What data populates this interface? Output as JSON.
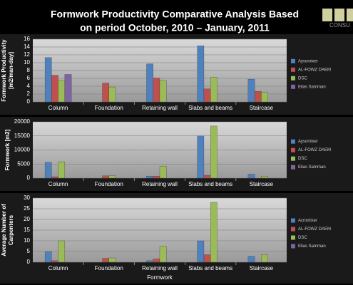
{
  "title": [
    "Formwork Productivity Comparative Analysis Based",
    "on period  October, 2010 – January, 2011"
  ],
  "logo": "CONSU",
  "chart_data": [
    {
      "type": "bar",
      "ylabel": [
        "Formwork Productivity",
        "[m2/man-day]"
      ],
      "categories": [
        "Column",
        "Foundation",
        "Retaining wall",
        "Slabs and beams",
        "Staircase"
      ],
      "series": [
        {
          "name": "Aysomixer",
          "color": "#4f81bd",
          "values": [
            11.3,
            null,
            9.7,
            14.3,
            5.8
          ]
        },
        {
          "name": "AL-FOWZ DAEM",
          "color": "#c0504d",
          "values": [
            6.8,
            4.8,
            6.1,
            3.3,
            2.7
          ]
        },
        {
          "name": "DSC",
          "color": "#9bbb59",
          "values": [
            5.5,
            3.8,
            5.5,
            6.3,
            2.4
          ]
        },
        {
          "name": "Elias Samman",
          "color": "#8064a2",
          "values": [
            7.0,
            null,
            null,
            null,
            null
          ]
        }
      ],
      "ylim": [
        0,
        16
      ],
      "yticks": [
        0,
        2,
        4,
        6,
        8,
        10,
        12,
        14,
        16
      ],
      "grid": true
    },
    {
      "type": "bar",
      "ylabel": [
        "Formwork [m2]"
      ],
      "categories": [
        "Column",
        "Foundation",
        "Retaining wall",
        "Slabs and beams",
        "Staircase"
      ],
      "series": [
        {
          "name": "Aysomixer",
          "color": "#4f81bd",
          "values": [
            5600,
            null,
            700,
            15000,
            1400
          ]
        },
        {
          "name": "AL-FOWZ DAEM",
          "color": "#c0504d",
          "values": [
            500,
            800,
            700,
            1000,
            null
          ]
        },
        {
          "name": "DSC",
          "color": "#9bbb59",
          "values": [
            5800,
            800,
            4200,
            18500,
            700
          ]
        },
        {
          "name": "Elias Samman",
          "color": "#8064a2",
          "values": [
            null,
            null,
            null,
            null,
            null
          ]
        }
      ],
      "ylim": [
        0,
        20000
      ],
      "yticks": [
        0,
        5000,
        10000,
        15000,
        20000
      ],
      "grid": true
    },
    {
      "type": "bar",
      "ylabel": [
        "Average Number  of",
        "Carpenters"
      ],
      "xlabel": "Formwork",
      "categories": [
        "Column",
        "Foundation",
        "Retaining wall",
        "Slabs and beams",
        "Staircase"
      ],
      "series": [
        {
          "name": "Acromixer",
          "color": "#4f81bd",
          "values": [
            5,
            null,
            0.7,
            10,
            2.8
          ]
        },
        {
          "name": "AL-FOWZ DAEM",
          "color": "#c0504d",
          "values": [
            0.7,
            1.8,
            1.5,
            3.5,
            null
          ]
        },
        {
          "name": "DSC",
          "color": "#9bbb59",
          "values": [
            10,
            2,
            7.5,
            28,
            3.5
          ]
        },
        {
          "name": "Elias Samman",
          "color": "#8064a2",
          "values": [
            null,
            null,
            null,
            null,
            null
          ]
        }
      ],
      "ylim": [
        0,
        30
      ],
      "yticks": [
        0,
        5,
        10,
        15,
        20,
        25,
        30
      ],
      "grid": true
    }
  ]
}
